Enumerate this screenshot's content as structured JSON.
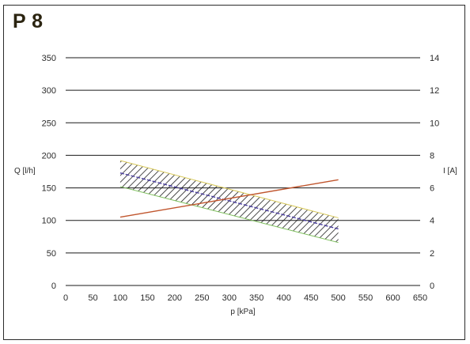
{
  "chart_data": {
    "type": "line",
    "title": "P 8",
    "xlabel": "p [kPa]",
    "ylabel_left": "Q [l/h]",
    "ylabel_right": "I [A]",
    "xlim": [
      0,
      650
    ],
    "ylim_left": [
      0,
      350
    ],
    "ylim_right": [
      0,
      14
    ],
    "x_ticks": [
      0,
      50,
      100,
      150,
      200,
      250,
      300,
      350,
      400,
      450,
      500,
      550,
      600,
      650
    ],
    "y_ticks_left": [
      0,
      50,
      100,
      150,
      200,
      250,
      300,
      350
    ],
    "y_ticks_right": [
      0,
      2,
      4,
      6,
      8,
      10,
      12,
      14
    ],
    "grid": "horizontal",
    "band": {
      "upper": {
        "x": [
          100,
          500
        ],
        "y": [
          192,
          104
        ]
      },
      "lower": {
        "x": [
          100,
          500
        ],
        "y": [
          152,
          66
        ]
      }
    },
    "series": [
      {
        "axis": "left",
        "color": "#4b3f9e",
        "style": "dashed",
        "x": [
          100,
          500
        ],
        "y": [
          173,
          87
        ]
      },
      {
        "axis": "right",
        "color": "#c0552d",
        "style": "solid",
        "x": [
          100,
          500
        ],
        "y": [
          4.2,
          6.5
        ]
      }
    ]
  }
}
